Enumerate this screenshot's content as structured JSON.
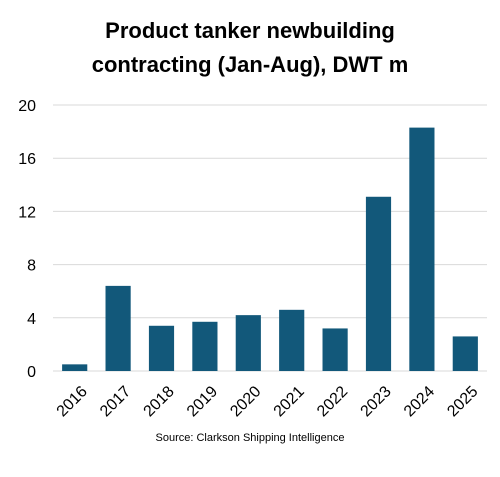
{
  "chart_data": {
    "type": "bar",
    "title_lines": [
      "Product tanker newbuilding",
      "contracting (Jan-Aug), DWT m"
    ],
    "categories": [
      "2016",
      "2017",
      "2018",
      "2019",
      "2020",
      "2021",
      "2022",
      "2023",
      "2024",
      "2025"
    ],
    "values": [
      0.5,
      6.4,
      3.4,
      3.7,
      4.2,
      4.6,
      3.2,
      13.1,
      18.3,
      2.6
    ],
    "ylim": [
      0,
      20
    ],
    "yticks": [
      "0",
      "4",
      "8",
      "12",
      "16",
      "20"
    ],
    "grid": true,
    "bar_color": "#12587A",
    "grid_color": "#D9D9D9",
    "source": "Source: Clarkson Shipping Intelligence"
  }
}
